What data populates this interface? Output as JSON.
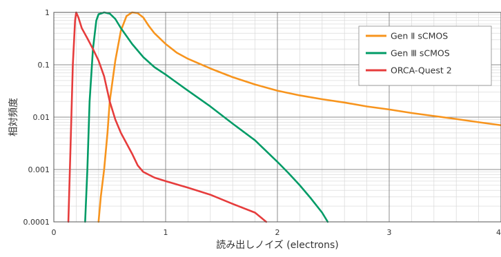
{
  "chart_data": {
    "type": "line",
    "title": "",
    "xlabel": "読み出しノイズ (electrons)",
    "ylabel": "相対頻度",
    "xlim": [
      0,
      4
    ],
    "ylim": [
      0.0001,
      1
    ],
    "yscale": "log",
    "grid": true,
    "legend_position": "top-right",
    "x_ticks": [
      {
        "value": 0,
        "label": "0"
      },
      {
        "value": 1,
        "label": "1"
      },
      {
        "value": 2,
        "label": "2"
      },
      {
        "value": 3,
        "label": "3"
      },
      {
        "value": 4,
        "label": "4"
      }
    ],
    "y_ticks": [
      {
        "value": 1,
        "label": "1"
      },
      {
        "value": 0.1,
        "label": "0.1"
      },
      {
        "value": 0.01,
        "label": "0.01"
      },
      {
        "value": 0.001,
        "label": "0.001"
      },
      {
        "value": 0.0001,
        "label": "0.0001"
      }
    ],
    "series": [
      {
        "name": "Gen Ⅱ sCMOS",
        "color": "#f7941d",
        "x": [
          0.4,
          0.42,
          0.45,
          0.48,
          0.5,
          0.55,
          0.6,
          0.65,
          0.7,
          0.75,
          0.8,
          0.85,
          0.9,
          1.0,
          1.1,
          1.2,
          1.4,
          1.6,
          1.8,
          2.0,
          2.2,
          2.4,
          2.6,
          2.8,
          3.0,
          3.2,
          3.4,
          3.6,
          3.8,
          4.0
        ],
        "y": [
          0.0001,
          0.0003,
          0.001,
          0.005,
          0.02,
          0.12,
          0.45,
          0.85,
          1.0,
          0.97,
          0.8,
          0.55,
          0.4,
          0.25,
          0.17,
          0.13,
          0.085,
          0.058,
          0.042,
          0.032,
          0.026,
          0.022,
          0.019,
          0.016,
          0.014,
          0.012,
          0.0105,
          0.0092,
          0.008,
          0.007
        ]
      },
      {
        "name": "Gen Ⅲ sCMOS",
        "color": "#009b66",
        "x": [
          0.28,
          0.3,
          0.32,
          0.35,
          0.38,
          0.4,
          0.45,
          0.5,
          0.55,
          0.6,
          0.7,
          0.8,
          0.9,
          1.0,
          1.2,
          1.4,
          1.6,
          1.8,
          2.0,
          2.1,
          2.2,
          2.3,
          2.4,
          2.45
        ],
        "y": [
          0.0001,
          0.001,
          0.02,
          0.2,
          0.7,
          0.92,
          1.0,
          0.95,
          0.75,
          0.5,
          0.25,
          0.14,
          0.09,
          0.065,
          0.032,
          0.016,
          0.0075,
          0.0036,
          0.0014,
          0.00085,
          0.0005,
          0.00028,
          0.00015,
          0.0001
        ]
      },
      {
        "name": "ORCA-Quest 2",
        "color": "#e63c3c",
        "x": [
          0.13,
          0.15,
          0.17,
          0.19,
          0.2,
          0.22,
          0.25,
          0.3,
          0.35,
          0.4,
          0.45,
          0.5,
          0.55,
          0.6,
          0.7,
          0.75,
          0.8,
          0.9,
          1.0,
          1.2,
          1.4,
          1.6,
          1.8,
          1.9
        ],
        "y": [
          0.0001,
          0.003,
          0.1,
          0.7,
          1.0,
          0.8,
          0.5,
          0.32,
          0.2,
          0.12,
          0.06,
          0.02,
          0.009,
          0.005,
          0.002,
          0.0012,
          0.0009,
          0.0007,
          0.0006,
          0.00045,
          0.00033,
          0.00022,
          0.00015,
          0.0001
        ]
      }
    ]
  }
}
